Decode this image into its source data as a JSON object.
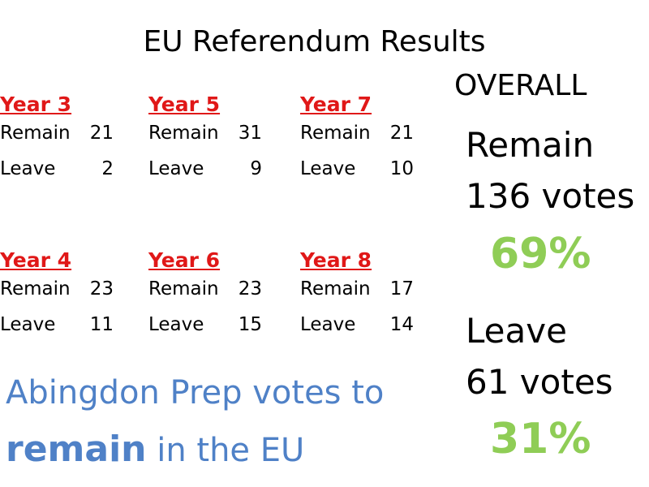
{
  "title": "EU Referendum Results",
  "overall": {
    "heading": "OVERALL",
    "remain": {
      "label": "Remain",
      "votes": "136 votes",
      "percent": "69%"
    },
    "leave": {
      "label": "Leave",
      "votes": "61 votes",
      "percent": "31%"
    },
    "percent_color": "#8fcd56"
  },
  "years": [
    {
      "title": "Year 3",
      "remain_label": "Remain",
      "remain": "21",
      "leave_label": "Leave",
      "leave": "2"
    },
    {
      "title": "Year 5",
      "remain_label": "Remain",
      "remain": "31",
      "leave_label": "Leave",
      "leave": "9"
    },
    {
      "title": "Year 7",
      "remain_label": "Remain",
      "remain": "21",
      "leave_label": "Leave",
      "leave": "10"
    },
    {
      "title": "Year 4",
      "remain_label": "Remain",
      "remain": "23",
      "leave_label": "Leave",
      "leave": "11"
    },
    {
      "title": "Year 6",
      "remain_label": "Remain",
      "remain": "23",
      "leave_label": "Leave",
      "leave": "15"
    },
    {
      "title": "Year 8",
      "remain_label": "Remain",
      "remain": "17",
      "leave_label": "Leave",
      "leave": "14"
    }
  ],
  "summary": {
    "line1": "Abingdon Prep votes to",
    "emphasis": "remain",
    "rest": " in the EU"
  },
  "colors": {
    "year_title": "#e01818",
    "summary_text": "#4f81c7"
  }
}
